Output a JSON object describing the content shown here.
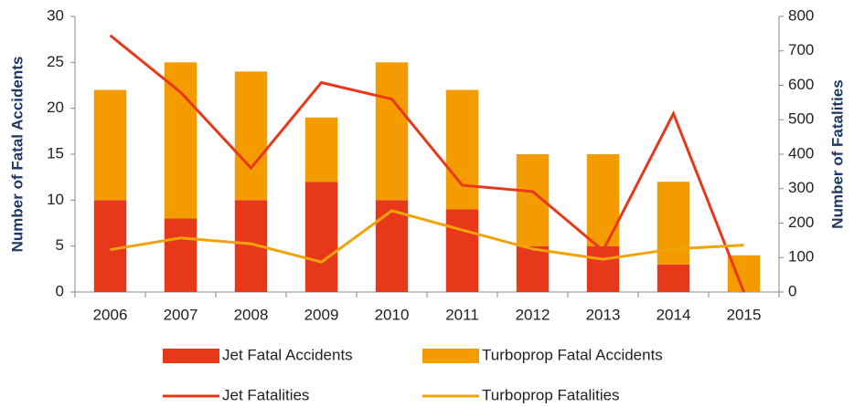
{
  "chart_data": {
    "type": "bar",
    "categories": [
      "2006",
      "2007",
      "2008",
      "2009",
      "2010",
      "2011",
      "2012",
      "2013",
      "2014",
      "2015"
    ],
    "y_label": "Number of Fatal Accidents",
    "y2_label": "Number of Fatalities",
    "ylim": [
      0,
      30
    ],
    "yticks": [
      0,
      5,
      10,
      15,
      20,
      25,
      30
    ],
    "y2lim": [
      0,
      800
    ],
    "y2ticks": [
      0,
      100,
      200,
      300,
      400,
      500,
      600,
      700,
      800
    ],
    "series": [
      {
        "name": "Jet Fatal Accidents",
        "type": "bar",
        "color": "#e8381a",
        "values": [
          10,
          8,
          10,
          12,
          10,
          9,
          5,
          5,
          3,
          0
        ]
      },
      {
        "name": "Turboprop Fatal Accidents",
        "type": "bar",
        "color": "#f49b00",
        "values": [
          12,
          17,
          14,
          7,
          15,
          13,
          10,
          10,
          9,
          4
        ]
      },
      {
        "name": "Jet Fatalities",
        "type": "line",
        "axis": "y2",
        "color": "#e8381a",
        "values": [
          745,
          580,
          360,
          608,
          560,
          310,
          292,
          120,
          518,
          0
        ]
      },
      {
        "name": "Turboprop Fatalities",
        "type": "line",
        "axis": "y2",
        "color": "#f0a30a",
        "values": [
          123,
          157,
          140,
          87,
          236,
          180,
          125,
          95,
          125,
          136
        ]
      }
    ]
  }
}
